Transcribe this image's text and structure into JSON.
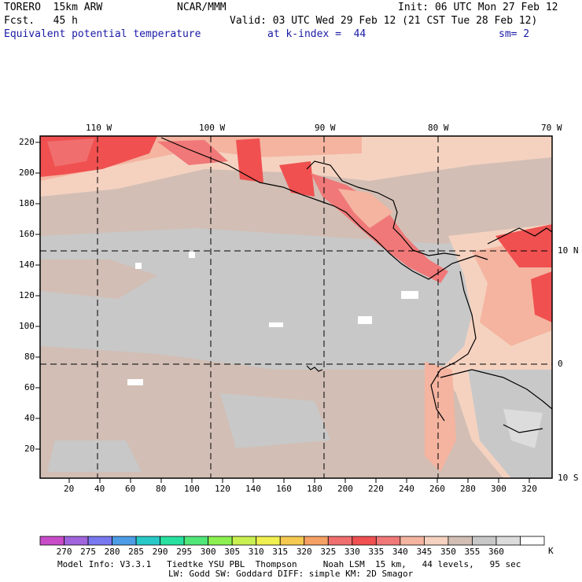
{
  "header": {
    "model": "TORERO  15km ARW",
    "center": "NCAR/MMM",
    "init": "Init: 06 UTC Mon 27 Feb 12",
    "fcst": "Fcst.   45 h",
    "valid": "Valid: 03 UTC Wed 29 Feb 12 (21 CST Tue 28 Feb 12)",
    "field": "Equivalent potential temperature",
    "level": "at k-index =  44",
    "smooth": "sm= 2"
  },
  "axes": {
    "lon_labels": [
      "110 W",
      "100 W",
      "90 W",
      "80 W",
      "70 W"
    ],
    "lat_labels": [
      "10 N",
      "0",
      "10 S"
    ],
    "y_ticks": [
      "220",
      "200",
      "180",
      "160",
      "140",
      "120",
      "100",
      "80",
      "60",
      "40",
      "20"
    ],
    "x_ticks": [
      "20",
      "40",
      "60",
      "80",
      "100",
      "120",
      "140",
      "160",
      "180",
      "200",
      "220",
      "240",
      "260",
      "280",
      "300",
      "320"
    ]
  },
  "colorbar": {
    "labels": [
      "270",
      "275",
      "280",
      "285",
      "290",
      "295",
      "300",
      "305",
      "310",
      "315",
      "320",
      "325",
      "330",
      "335",
      "340",
      "345",
      "350",
      "355",
      "360"
    ],
    "unit": "K",
    "colors": [
      "#c84cc8",
      "#a064dc",
      "#7878f0",
      "#4c9ce6",
      "#28c8c8",
      "#28e0a0",
      "#50e678",
      "#8cf050",
      "#c8f050",
      "#f0f050",
      "#f5c850",
      "#f5a064",
      "#f06e6e",
      "#f05050",
      "#f07878",
      "#f4b4a0",
      "#f5d2c0",
      "#d2beb4",
      "#c8c8c8",
      "#dcdcdc",
      "#ffffff"
    ]
  },
  "footer": {
    "line1": "Model Info: V3.3.1   Tiedtke YSU PBL  Thompson     Noah LSM  15 km,   44 levels,   95 sec",
    "line2": "LW: Godd SW: Goddard DIFF: simple KM: 2D Smagor"
  }
}
